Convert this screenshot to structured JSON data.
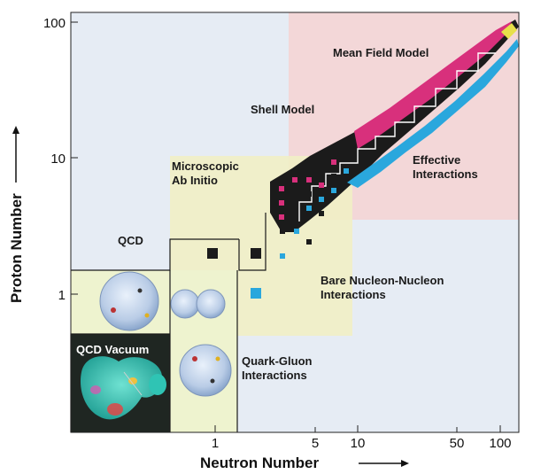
{
  "axes": {
    "x_label": "Neutron Number",
    "y_label": "Proton Number",
    "x_scale": "log",
    "y_scale": "log",
    "x_ticks": [
      "1",
      "5",
      "10",
      "50",
      "100"
    ],
    "y_ticks": [
      "100",
      "10",
      "1"
    ]
  },
  "regions": {
    "mean_field": "Mean Field Model",
    "shell_model": "Shell Model",
    "effective": [
      "Effective",
      "Interactions"
    ],
    "microscopic": [
      "Microscopic",
      "Ab Initio"
    ],
    "qcd": "QCD",
    "bare_nn": [
      "Bare Nucleon-Nucleon",
      "Interactions"
    ],
    "qcd_vacuum": "QCD Vacuum",
    "quark_gluon": [
      "Quark-Gluon",
      "Interactions"
    ]
  },
  "colors": {
    "background": "#e6ecf4",
    "mean_field_region": "#f3d7d8",
    "ab_initio_region": "#f1efc6",
    "low_region": "#eef3cf",
    "nucleus_magenta": "#d8307c",
    "nucleus_cyan": "#2aa7dd",
    "nucleus_black": "#1b1b1b",
    "vacuum_bg": "#1f2622",
    "vacuum_blob": "#2fc4b4"
  }
}
